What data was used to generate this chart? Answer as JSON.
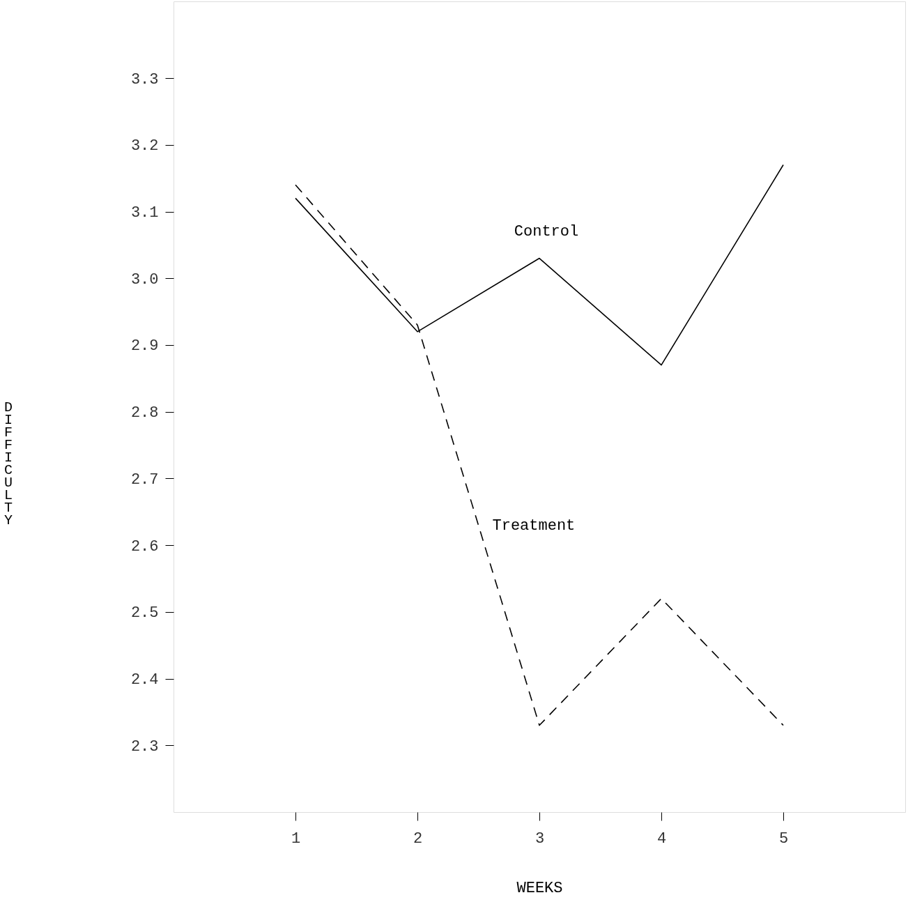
{
  "chart_data": {
    "type": "line",
    "xlabel": "WEEKS",
    "ylabel": "DIFFICULTY",
    "x": [
      1,
      2,
      3,
      4,
      5
    ],
    "xlim": [
      0,
      6
    ],
    "xticks": [
      1,
      2,
      3,
      4,
      5
    ],
    "ylim": [
      2.2,
      3.415
    ],
    "yticks": [
      2.3,
      2.4,
      2.5,
      2.6,
      2.7,
      2.8,
      2.9,
      {
        "value": 3,
        "label": "3.0"
      },
      3.1,
      3.2,
      3.3
    ],
    "grid": false,
    "marker": "none",
    "series": [
      {
        "name": "Control",
        "color": "#000000",
        "line_style": "solid",
        "values": [
          3.12,
          2.92,
          3.03,
          2.87,
          3.17
        ]
      },
      {
        "name": "Treatment",
        "color": "#000000",
        "line_style": "dashed",
        "values": [
          3.14,
          2.93,
          2.33,
          2.52,
          2.33
        ]
      }
    ]
  }
}
